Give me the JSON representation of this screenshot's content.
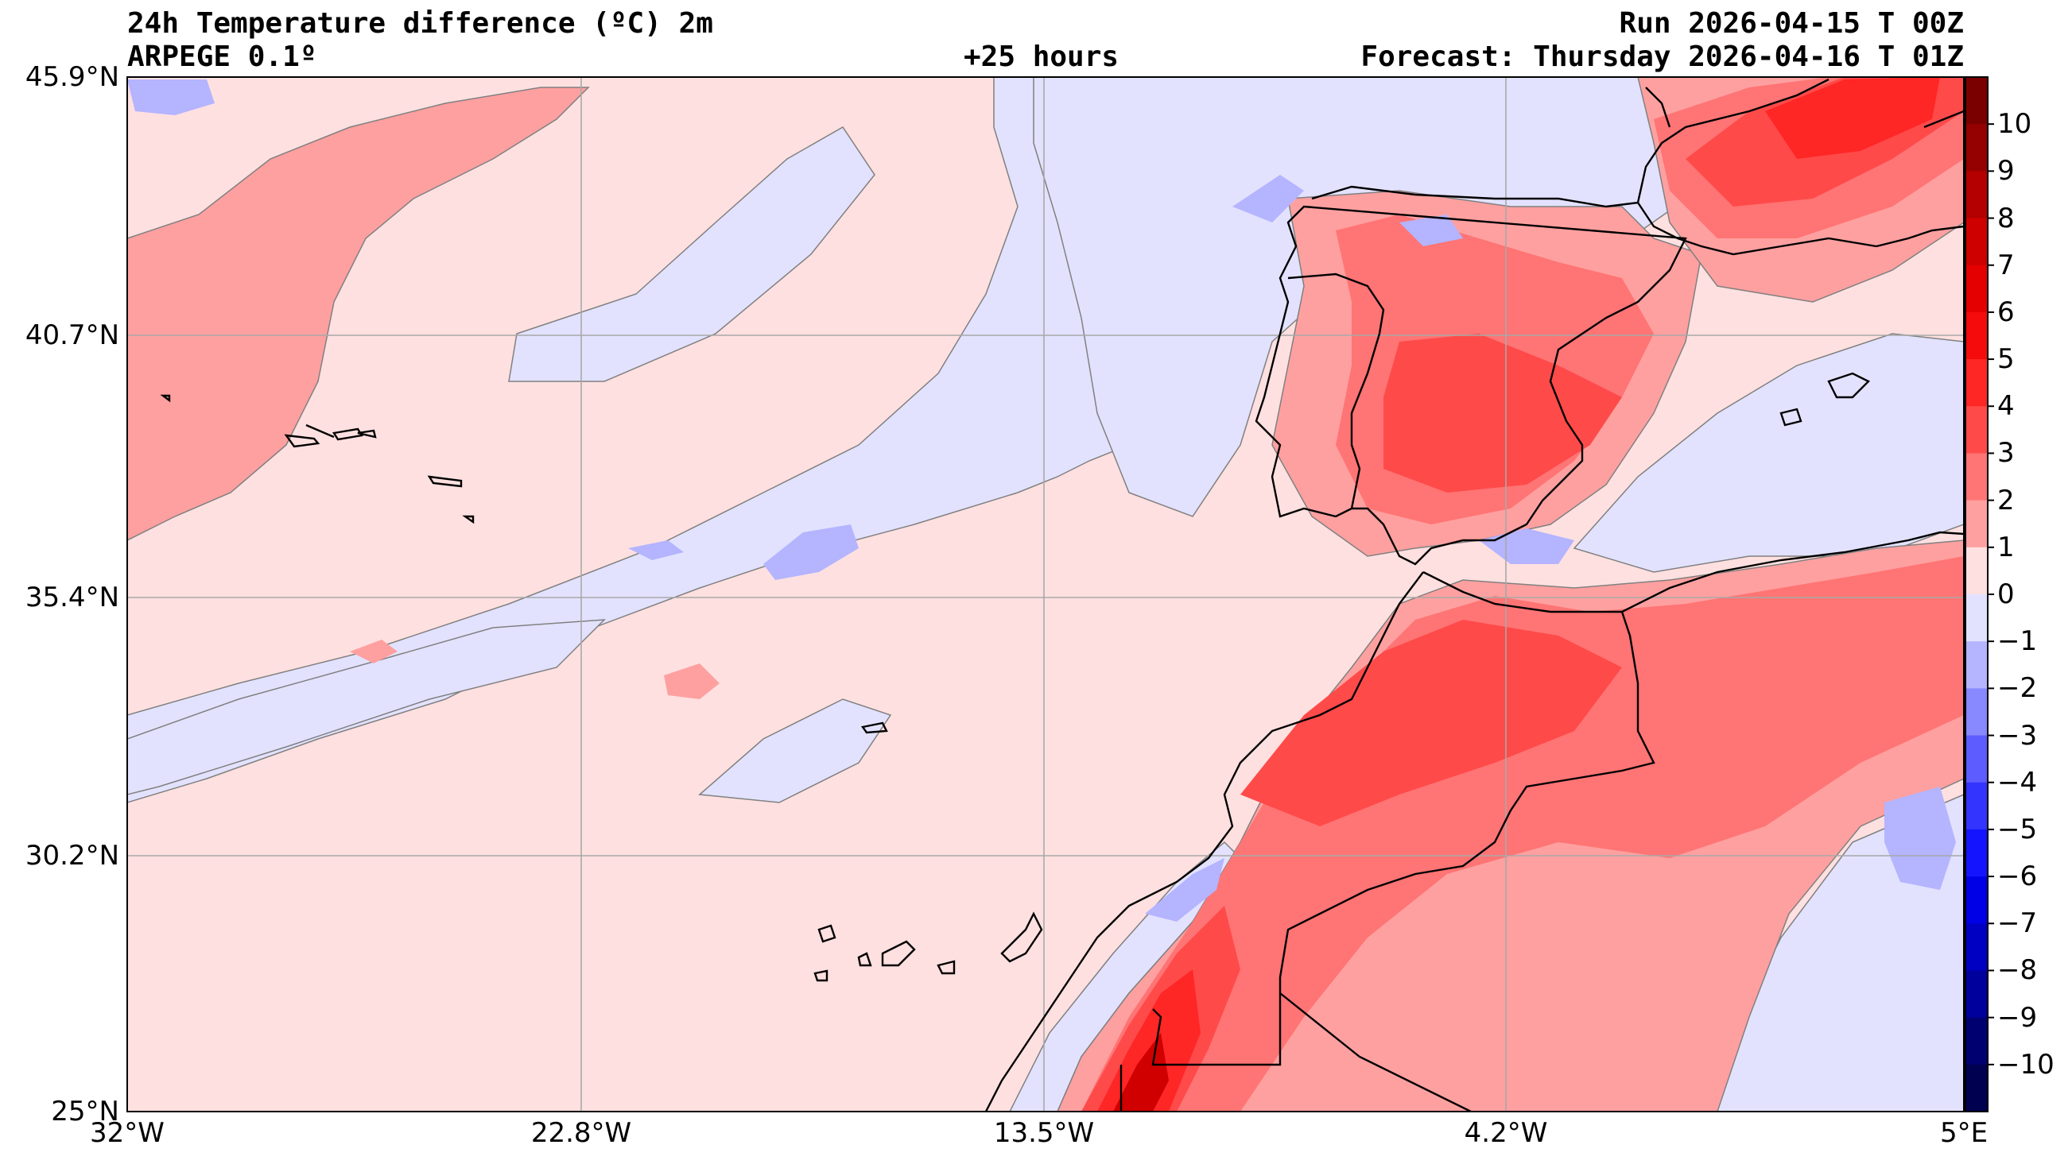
{
  "header": {
    "title": "24h Temperature difference (ºC) 2m",
    "model": "ARPEGE 0.1º",
    "lead_time": "+25 hours",
    "run": "Run 2026-04-15 T 00Z",
    "forecast": "Forecast: Thursday 2026-04-16 T 01Z"
  },
  "map": {
    "lat_labels": [
      "45.9°N",
      "40.7°N",
      "35.4°N",
      "30.2°N",
      "25°N"
    ],
    "lon_labels": [
      "32°W",
      "22.8°W",
      "13.5°W",
      "4.2°W",
      "5°E"
    ],
    "lat_values": [
      45.9,
      40.7,
      35.4,
      30.2,
      25.0
    ],
    "lon_values": [
      -32.0,
      -22.8,
      -13.5,
      -4.2,
      5.0
    ],
    "extent": {
      "lon_min": -32.0,
      "lon_max": 5.0,
      "lat_min": 25.0,
      "lat_max": 45.9
    },
    "gridlines": true
  },
  "colorbar": {
    "unit": "ºC",
    "labels": [
      "10",
      "9",
      "8",
      "7",
      "6",
      "5",
      "4",
      "3",
      "2",
      "1",
      "0",
      "−1",
      "−2",
      "−3",
      "−4",
      "−5",
      "−6",
      "−7",
      "−8",
      "−9",
      "−10"
    ],
    "colors": [
      "#7a0000",
      "#950000",
      "#b40000",
      "#cf0000",
      "#e40000",
      "#f50b0b",
      "#ff2626",
      "#ff4a4a",
      "#ff7474",
      "#ffa0a0",
      "#ffe0e0",
      "#e2e2ff",
      "#b4b4ff",
      "#8888ff",
      "#5c5cff",
      "#3434ff",
      "#1414ff",
      "#0000e6",
      "#0000c2",
      "#00009c",
      "#000070",
      "#000050"
    ]
  },
  "colors": {
    "ocean_light_positive": "#ffe0e0",
    "ocean_light_negative": "#e2e2ff",
    "positive_1_2": "#ffa0a0",
    "positive_2_3": "#ff7474",
    "positive_3_4": "#ff4a4a",
    "positive_5": "#ff2626",
    "positive_7": "#d00000",
    "negative_1_2": "#b4b4ff",
    "negative_2_3": "#8888ff",
    "gridline": "#a8a8a8",
    "coastline": "#000000"
  }
}
